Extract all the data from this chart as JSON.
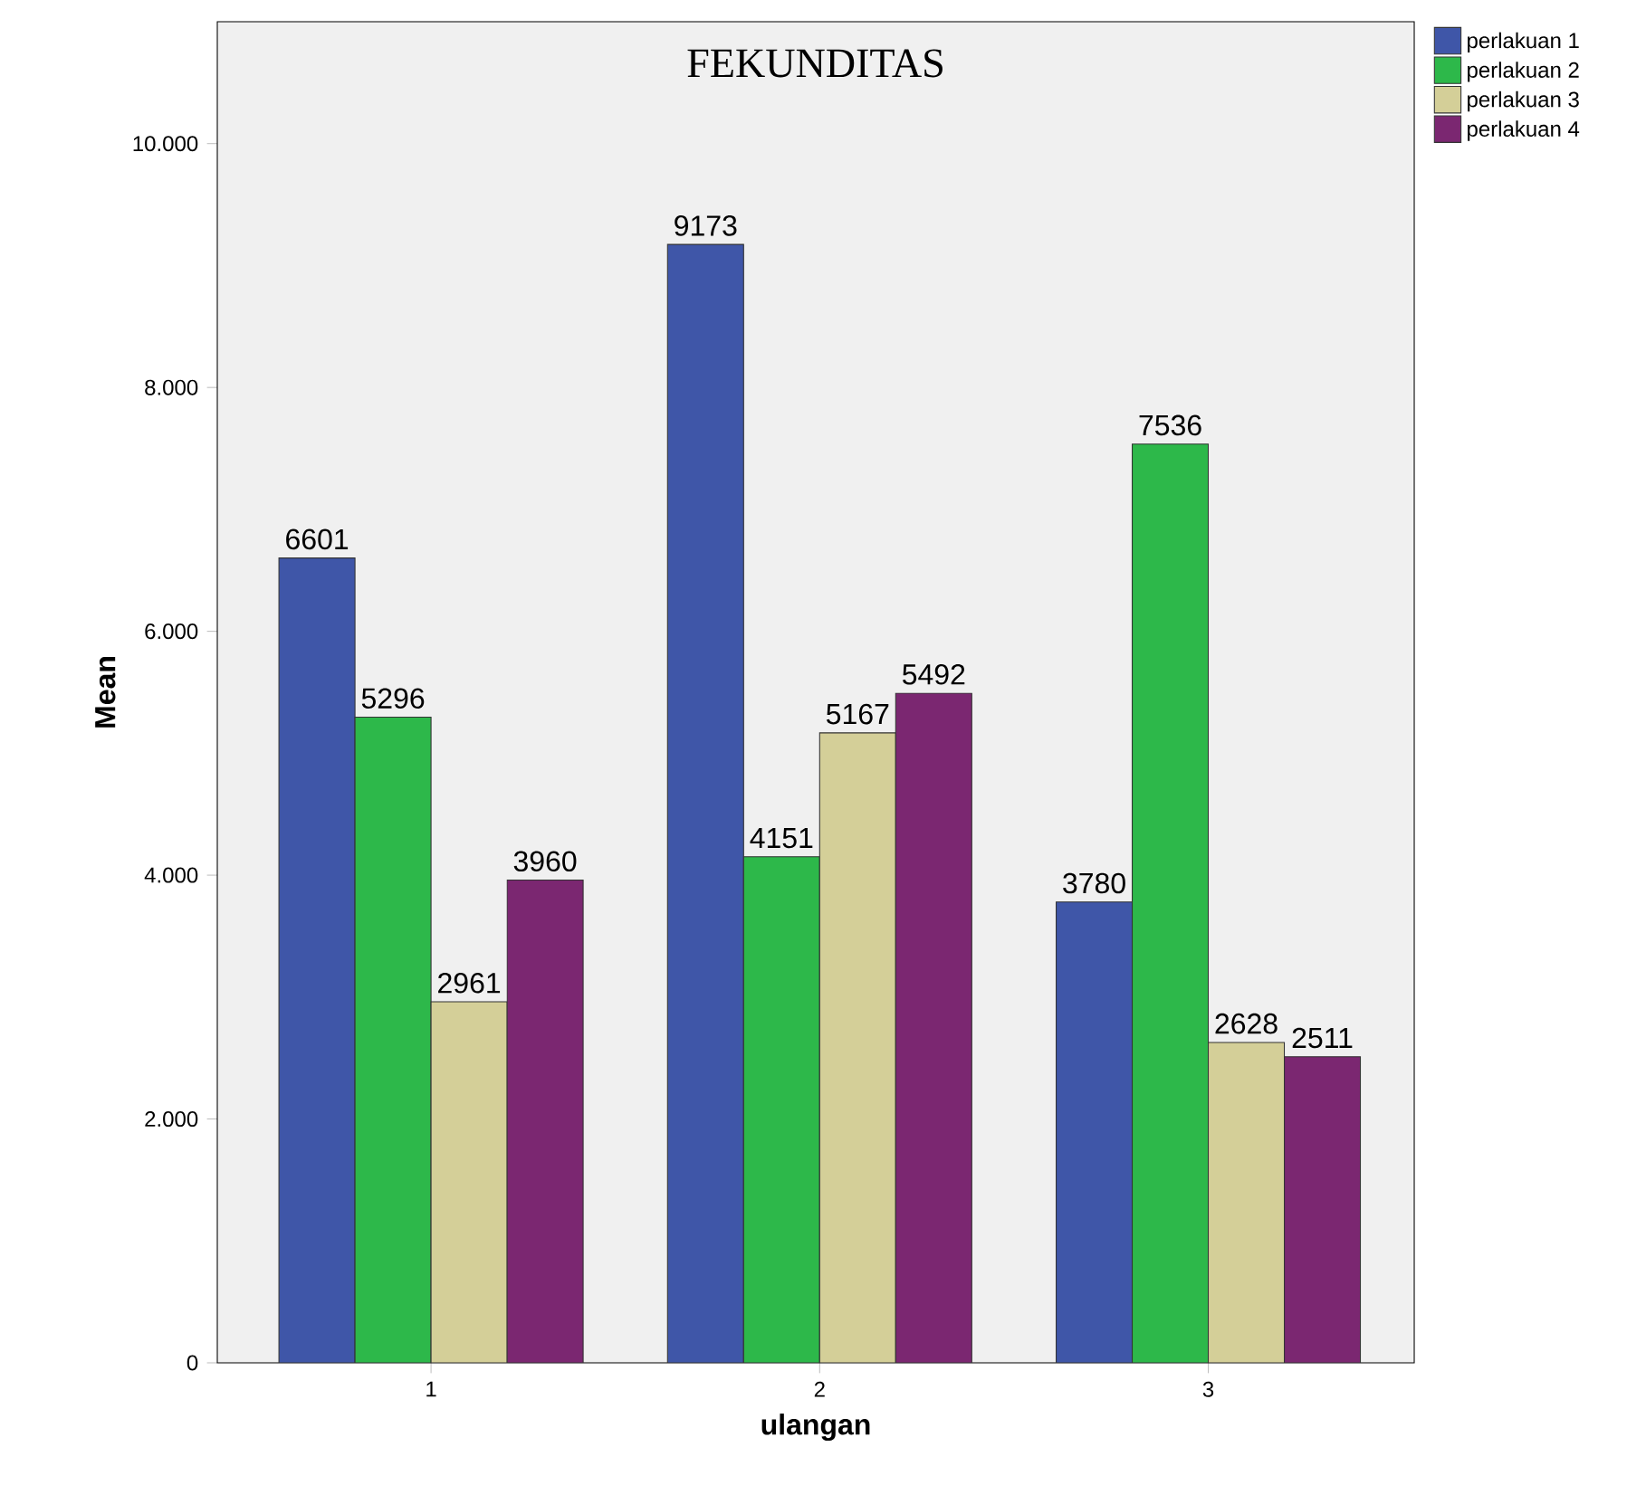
{
  "chart_data": {
    "type": "bar",
    "title": "FEKUNDITAS",
    "xlabel": "ulangan",
    "ylabel": "Mean",
    "categories": [
      "1",
      "2",
      "3"
    ],
    "series": [
      {
        "name": "perlakuan 1",
        "color": "#3f56a8",
        "values": [
          6601,
          9173,
          3780
        ]
      },
      {
        "name": "perlakuan 2",
        "color": "#2db84a",
        "values": [
          5296,
          4151,
          7536
        ]
      },
      {
        "name": "perlakuan 3",
        "color": "#d4cf98",
        "values": [
          2961,
          5167,
          2628
        ]
      },
      {
        "name": "perlakuan 4",
        "color": "#7b2771",
        "values": [
          3960,
          5492,
          2511
        ]
      }
    ],
    "ylim": [
      0,
      11000
    ],
    "yticks": [
      0,
      {
        "value": 2000,
        "label": "2.000"
      },
      {
        "value": 4000,
        "label": "4.000"
      },
      {
        "value": 6000,
        "label": "6.000"
      },
      {
        "value": 8000,
        "label": "8.000"
      },
      {
        "value": 10000,
        "label": "10.000"
      }
    ],
    "data_labels": true,
    "legend": "top right",
    "grid": false
  }
}
